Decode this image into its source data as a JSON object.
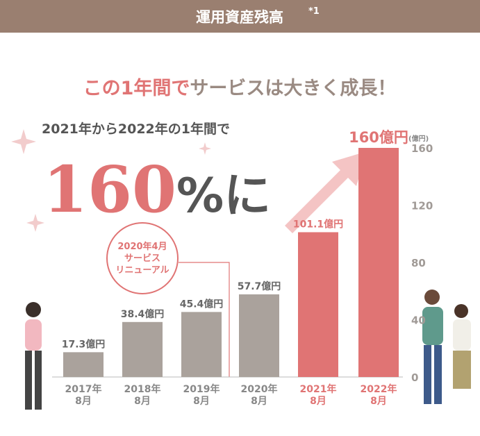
{
  "header": {
    "title": "運用資産残高",
    "note_mark": "*1"
  },
  "chart_data": {
    "type": "bar",
    "headline": [
      "この1年間で",
      "サービスは大きく成長！"
    ],
    "subtitle": "2021年から2022年の1年間で",
    "callout": [
      "160",
      "%に"
    ],
    "annotation": "2020年4月\nサービス\nリニューアル",
    "categories": [
      "2017年\n8月",
      "2018年\n8月",
      "2019年\n8月",
      "2020年\n8月",
      "2021年\n8月",
      "2022年\n8月"
    ],
    "values": [
      17.3,
      38.4,
      45.4,
      57.7,
      101.1,
      160
    ],
    "value_labels": [
      "17.3億円",
      "38.4億円",
      "45.4億円",
      "57.7億円",
      "101.1億円",
      "160億円"
    ],
    "colors": [
      "#aaa29c",
      "#aaa29c",
      "#aaa29c",
      "#aaa29c",
      "#e07474",
      "#e07474"
    ],
    "y_axis_label": "(億円)",
    "ylim": [
      0,
      160
    ],
    "yticks": [
      0,
      40,
      80,
      120,
      160
    ]
  }
}
